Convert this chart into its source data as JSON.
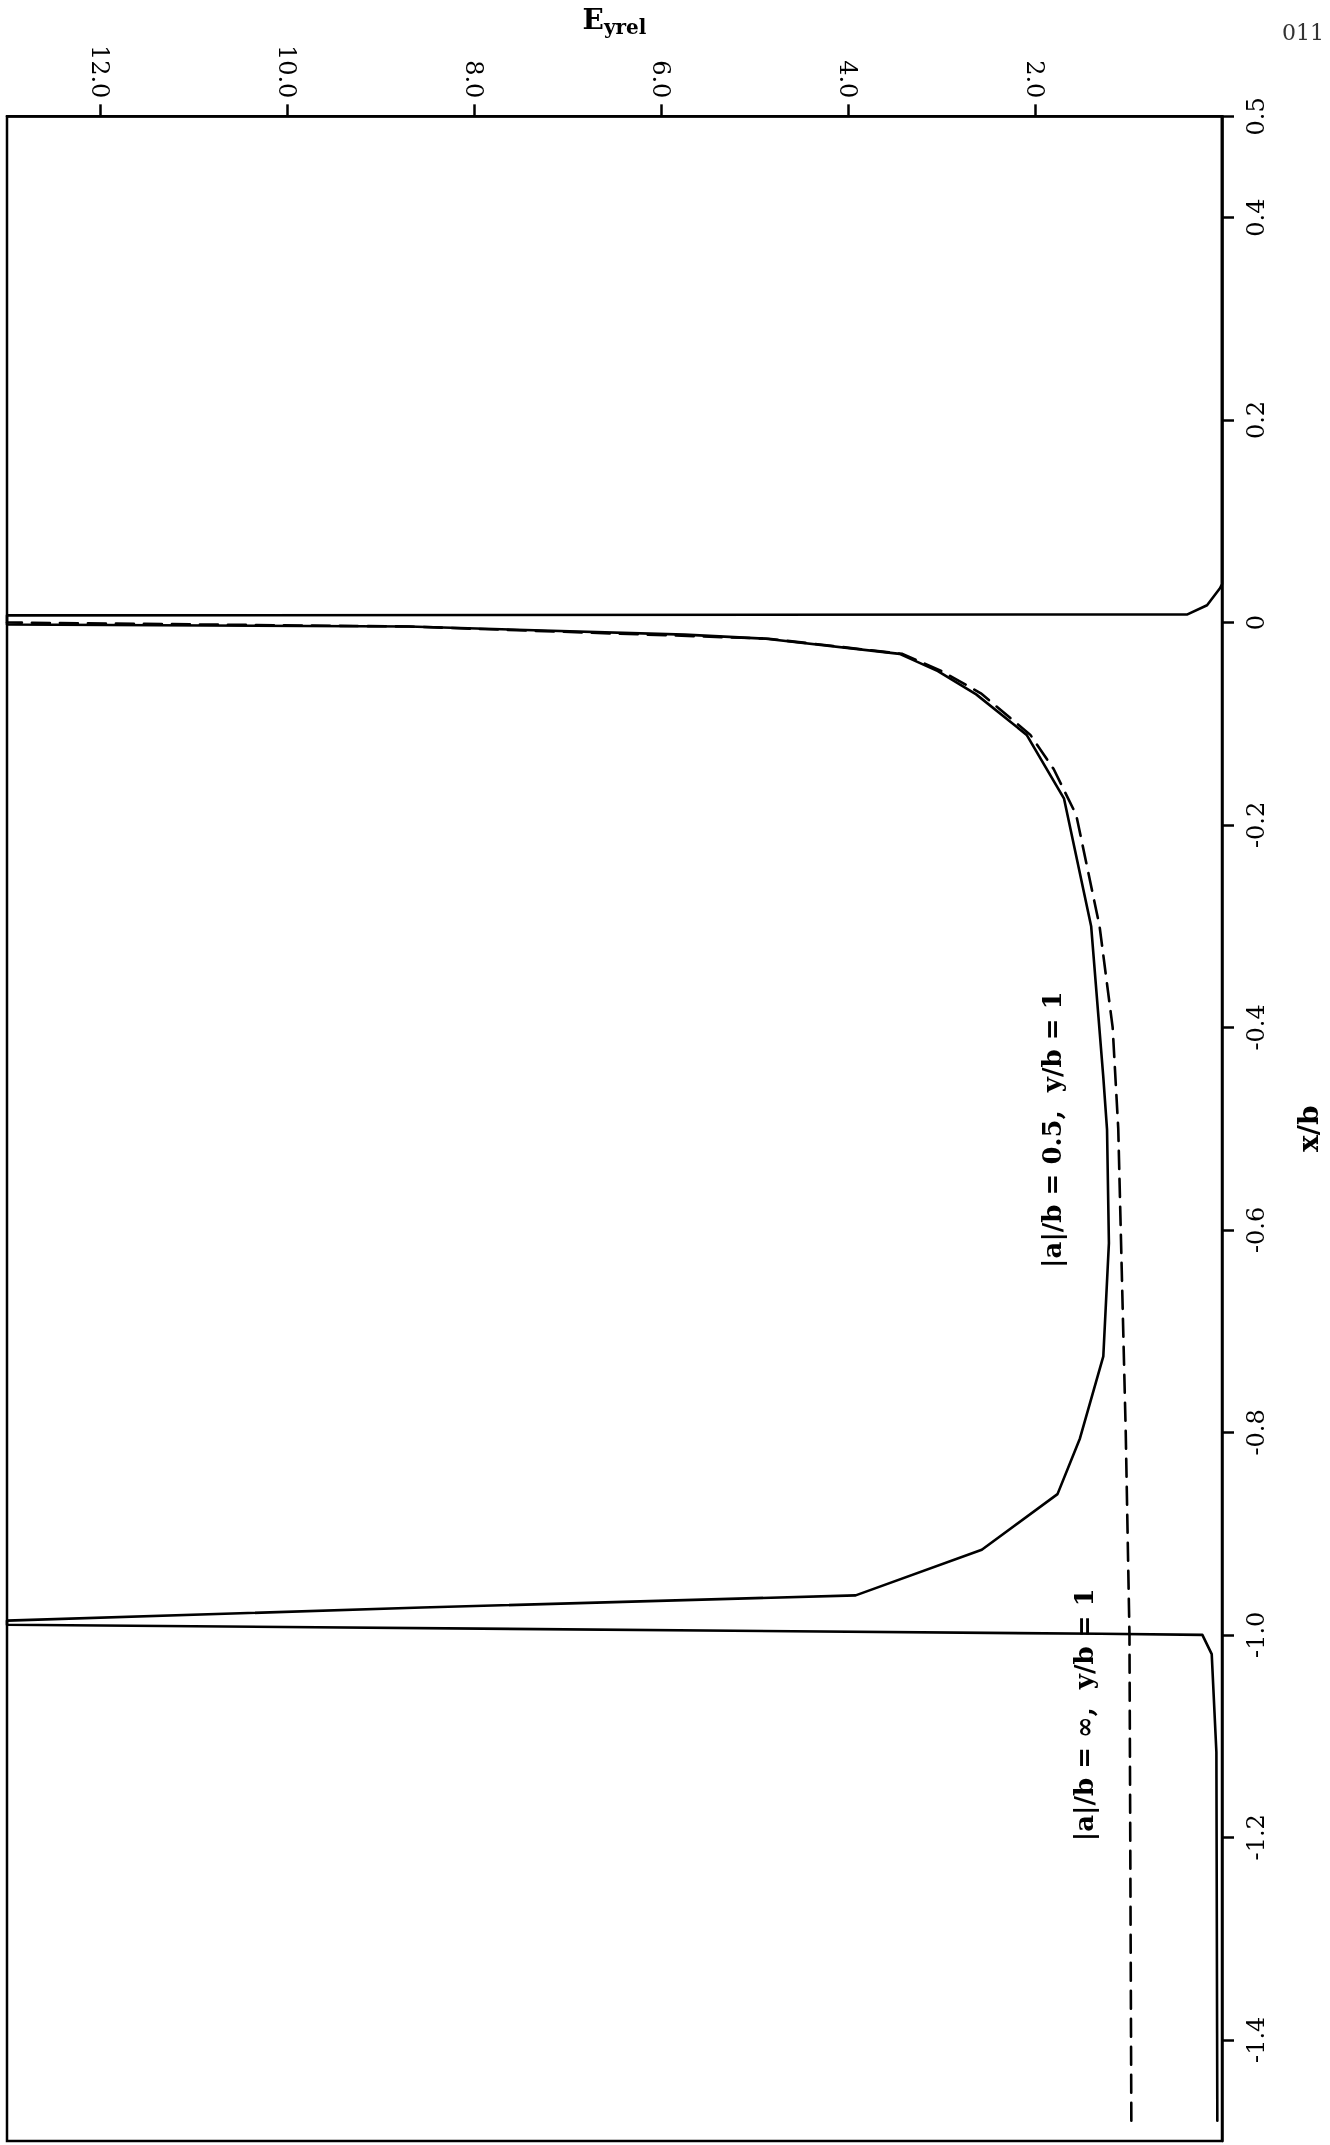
{
  "chart_data": {
    "type": "line",
    "xlabel": "E$_{yrel}$",
    "ylabel": "x/b",
    "annotations": [
      "011"
    ],
    "xlim": [
      13,
      0
    ],
    "ylim": [
      -1.5,
      0.5
    ],
    "xticks": [
      {
        "value": 12,
        "label": "12.0"
      },
      {
        "value": 10,
        "label": "10.0"
      },
      {
        "value": 8,
        "label": "8.0"
      },
      {
        "value": 6,
        "label": "6.0"
      },
      {
        "value": 4,
        "label": "4.0"
      },
      {
        "value": 2,
        "label": "2.0"
      }
    ],
    "yticks": [
      -1.4,
      -1.2,
      {
        "value": -1,
        "label": "-1.0"
      },
      -0.8,
      -0.6,
      -0.4,
      -0.2,
      0,
      0.2,
      0.4,
      0.5
    ],
    "marker": "none",
    "series": [
      {
        "name": "|a|/b = 0.5,  y/b = 1",
        "color": "#000000",
        "line_style": "solid",
        "values": [
          -1.48,
          -1.116,
          -1.019,
          -1.0,
          -0.999,
          -0.99,
          -0.986,
          -0.973,
          -0.961,
          -0.916,
          -0.861,
          -0.806,
          -0.725,
          -0.613,
          -0.501,
          -0.449,
          -0.3,
          -0.174,
          -0.111,
          -0.071,
          -0.048,
          -0.031,
          -0.016,
          -0.012,
          -0.004,
          -0.002,
          0.007,
          0.008,
          0.017,
          0.034,
          0.038,
          0.5
        ],
        "x": [
          0.05,
          0.06,
          0.11,
          0.21,
          1.3,
          13,
          13,
          8.56,
          3.92,
          2.57,
          1.76,
          1.52,
          1.27,
          1.21,
          1.23,
          1.27,
          1.4,
          1.69,
          2.09,
          2.63,
          3.04,
          3.45,
          4.88,
          5.75,
          8.7,
          13,
          13,
          0.37,
          0.16,
          0.02,
          0,
          0
        ]
      },
      {
        "name": "|a|/b = ∞,  y/b = 1",
        "color": "#000000",
        "line_style": "dashed",
        "values": [
          -1.48,
          -1.0,
          -0.8,
          -0.65,
          -0.5,
          -0.4,
          -0.3,
          -0.19,
          -0.145,
          -0.111,
          -0.07,
          -0.048,
          -0.031,
          -0.016,
          -0.004,
          0.0
        ],
        "x": [
          0.97,
          0.99,
          1.03,
          1.07,
          1.11,
          1.17,
          1.31,
          1.56,
          1.8,
          2.05,
          2.58,
          3.0,
          3.42,
          4.85,
          8.7,
          13
        ]
      }
    ]
  }
}
